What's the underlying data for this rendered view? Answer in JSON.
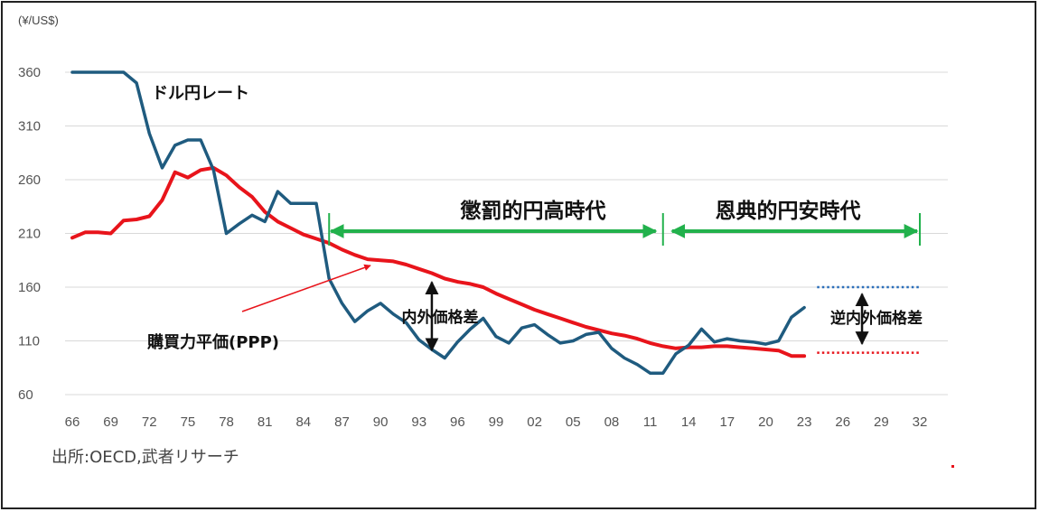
{
  "chart_data": {
    "type": "line",
    "y_unit": "(¥/US$)",
    "ylim": [
      60,
      360
    ],
    "y_ticks": [
      60,
      110,
      160,
      210,
      260,
      310,
      360
    ],
    "xlim": [
      1966,
      2032
    ],
    "x_tick_years": [
      1966,
      1969,
      1972,
      1975,
      1978,
      1981,
      1984,
      1987,
      1990,
      1993,
      1996,
      1999,
      2002,
      2005,
      2008,
      2011,
      2014,
      2017,
      2020,
      2023,
      2026,
      2029,
      2032
    ],
    "x_tick_labels": [
      "66",
      "69",
      "72",
      "75",
      "78",
      "81",
      "84",
      "87",
      "90",
      "93",
      "96",
      "99",
      "02",
      "05",
      "08",
      "11",
      "14",
      "17",
      "20",
      "23",
      "26",
      "29",
      "32"
    ],
    "grid": "horizontal",
    "series": [
      {
        "name": "ドル円レート",
        "color": "#1f5b7f",
        "x": [
          1966,
          1967,
          1968,
          1969,
          1970,
          1971,
          1972,
          1973,
          1974,
          1975,
          1976,
          1977,
          1978,
          1979,
          1980,
          1981,
          1982,
          1983,
          1984,
          1985,
          1986,
          1987,
          1988,
          1989,
          1990,
          1991,
          1992,
          1993,
          1994,
          1995,
          1996,
          1997,
          1998,
          1999,
          2000,
          2001,
          2002,
          2003,
          2004,
          2005,
          2006,
          2007,
          2008,
          2009,
          2010,
          2011,
          2012,
          2013,
          2014,
          2015,
          2016,
          2017,
          2018,
          2019,
          2020,
          2021,
          2022,
          2023
        ],
        "values": [
          360,
          360,
          360,
          360,
          360,
          350,
          303,
          271,
          292,
          297,
          297,
          269,
          210,
          219,
          227,
          221,
          249,
          238,
          238,
          238,
          168,
          145,
          128,
          138,
          145,
          135,
          127,
          111,
          102,
          94,
          109,
          121,
          131,
          114,
          108,
          122,
          125,
          116,
          108,
          110,
          116,
          118,
          103,
          94,
          88,
          80,
          80,
          98,
          106,
          121,
          109,
          112,
          110,
          109,
          107,
          110,
          132,
          141
        ]
      },
      {
        "name": "購買力平価(PPP)",
        "color": "#e8141b",
        "x": [
          1966,
          1967,
          1968,
          1969,
          1970,
          1971,
          1972,
          1973,
          1974,
          1975,
          1976,
          1977,
          1978,
          1979,
          1980,
          1981,
          1982,
          1983,
          1984,
          1985,
          1986,
          1987,
          1988,
          1989,
          1990,
          1991,
          1992,
          1993,
          1994,
          1995,
          1996,
          1997,
          1998,
          1999,
          2000,
          2001,
          2002,
          2003,
          2004,
          2005,
          2006,
          2007,
          2008,
          2009,
          2010,
          2011,
          2012,
          2013,
          2014,
          2015,
          2016,
          2017,
          2018,
          2019,
          2020,
          2021,
          2022,
          2023
        ],
        "values": [
          206,
          211,
          211,
          210,
          222,
          223,
          226,
          241,
          267,
          262,
          269,
          271,
          264,
          253,
          244,
          230,
          221,
          215,
          209,
          205,
          201,
          195,
          190,
          186,
          185,
          184,
          181,
          177,
          173,
          168,
          165,
          163,
          160,
          154,
          149,
          144,
          139,
          135,
          131,
          127,
          123,
          120,
          117,
          115,
          112,
          108,
          105,
          103,
          104,
          104,
          105,
          105,
          104,
          103,
          102,
          101,
          96,
          96
        ]
      }
    ],
    "projections": [
      {
        "series": "ドル円レート",
        "style": "dotted",
        "color": "#2a6ebb",
        "x": [
          2024,
          2032
        ],
        "values": [
          160,
          160
        ]
      },
      {
        "series": "購買力平価(PPP)",
        "style": "dotted",
        "color": "#e8141b",
        "x": [
          2024,
          2032
        ],
        "values": [
          99,
          99
        ]
      }
    ],
    "annotations": {
      "era1_label": "懲罰的円高時代",
      "era1_range": [
        1986,
        2012
      ],
      "era2_label": "恩典的円安時代",
      "era2_range": [
        2012,
        2032
      ],
      "era_arrow_color": "#22b14c",
      "gap1_label": "内外価格差",
      "gap1_x": 1994,
      "gap1_values": [
        98,
        168
      ],
      "gap2_label": "逆内外価格差",
      "gap2_x": 2027.5,
      "gap2_values": [
        104,
        157
      ],
      "rate_label": "ドル円レート",
      "ppp_label": "購買力平価(PPP)"
    },
    "source": "出所:OECD,武者リサーチ"
  }
}
